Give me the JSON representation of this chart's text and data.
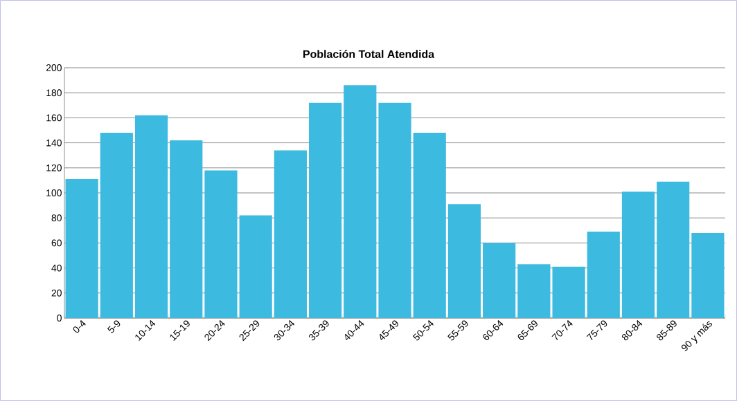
{
  "chart_data": {
    "type": "bar",
    "title": "Población Total Atendida",
    "categories": [
      "0-4",
      "5-9",
      "10-14",
      "15-19",
      "20-24",
      "25-29",
      "30-34",
      "35-39",
      "40-44",
      "45-49",
      "50-54",
      "55-59",
      "60-64",
      "65-69",
      "70-74",
      "75-79",
      "80-84",
      "85-89",
      "90 y más"
    ],
    "values": [
      111,
      148,
      162,
      142,
      118,
      82,
      134,
      172,
      186,
      172,
      148,
      91,
      60,
      43,
      41,
      69,
      101,
      109,
      68
    ],
    "color": "#3dbadf",
    "ylim": [
      0,
      200
    ],
    "yticks": [
      0,
      20,
      40,
      60,
      80,
      100,
      120,
      140,
      160,
      180,
      200
    ],
    "grid": "y"
  }
}
